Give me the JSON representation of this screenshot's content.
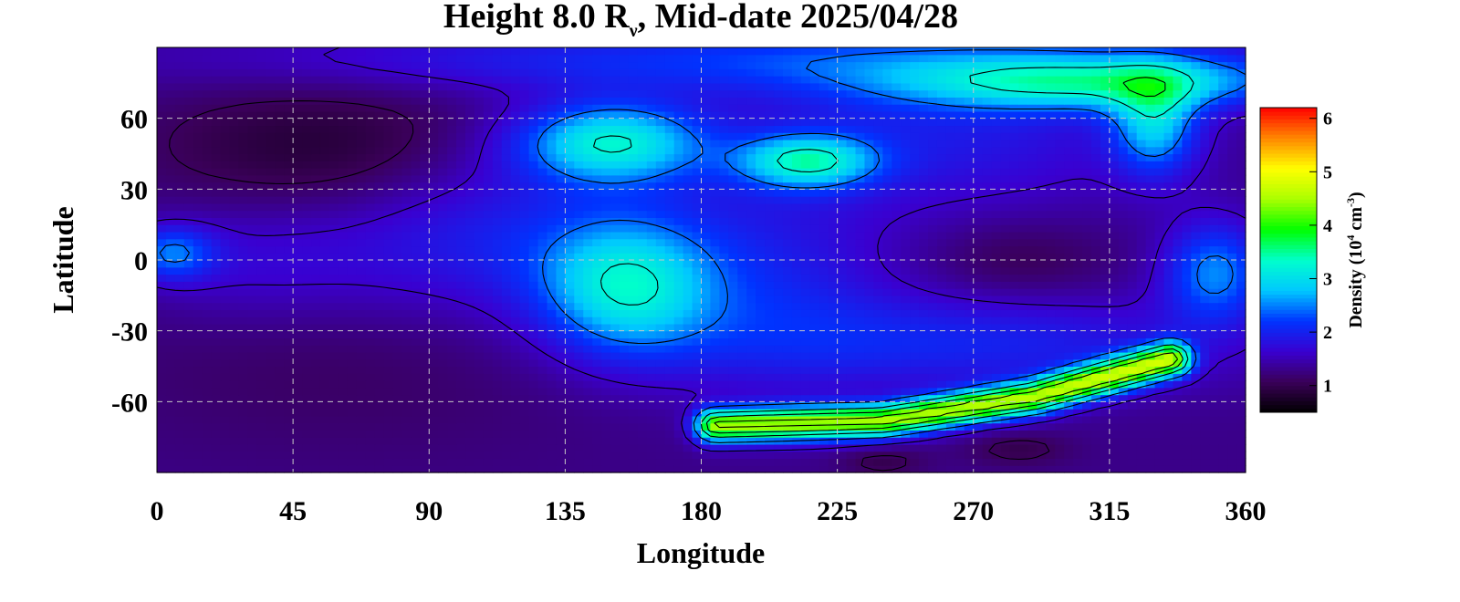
{
  "chart_data": {
    "type": "heatmap",
    "title_main": "Height 8.0 R",
    "title_sub": "ν",
    "title_rest": ", Mid-date 2025/04/28",
    "xlabel": "Longitude",
    "ylabel": "Latitude",
    "xlim": [
      0,
      360
    ],
    "ylim": [
      -90,
      90
    ],
    "x_ticks": [
      0,
      45,
      90,
      135,
      180,
      225,
      270,
      315,
      360
    ],
    "x_tick_labels": [
      "0",
      "45",
      "90",
      "135",
      "180",
      "225",
      "270",
      "315",
      "360"
    ],
    "y_ticks": [
      60,
      30,
      0,
      -30,
      -60
    ],
    "y_tick_labels": [
      "60",
      "30",
      "0",
      "-30",
      "-60"
    ],
    "grid": true,
    "colorbar": {
      "label_main": "Density (10",
      "label_sup1": "4",
      "label_mid": " cm",
      "label_sup2": "-3",
      "label_end": ")",
      "range": [
        0.5,
        6.2
      ],
      "ticks": [
        1,
        2,
        3,
        4,
        5,
        6
      ],
      "tick_labels": [
        "1",
        "2",
        "3",
        "4",
        "5",
        "6"
      ],
      "colors": [
        "#000000",
        "#3a0058",
        "#3a00d0",
        "#0033ff",
        "#00c8ff",
        "#00ffcc",
        "#00ff00",
        "#aaff00",
        "#ffff00",
        "#ff8800",
        "#ff0000"
      ]
    },
    "background_level": 1.3,
    "features": [
      {
        "lon": 55,
        "lat": 45,
        "sx": 40,
        "sy": 22,
        "amp": -0.5
      },
      {
        "lon": 60,
        "lat": -40,
        "sx": 60,
        "sy": 30,
        "amp": -0.2
      },
      {
        "lon": 285,
        "lat": 0,
        "sx": 22,
        "sy": 12,
        "amp": -0.3
      },
      {
        "lon": 240,
        "lat": -85,
        "sx": 10,
        "sy": 5,
        "amp": -0.3
      },
      {
        "lon": 285,
        "lat": -80,
        "sx": 12,
        "sy": 5,
        "amp": -0.3
      },
      {
        "lon": 150,
        "lat": 50,
        "sx": 22,
        "sy": 12,
        "amp": 1.8
      },
      {
        "lon": 155,
        "lat": -12,
        "sx": 20,
        "sy": 20,
        "amp": 1.6
      },
      {
        "lon": 215,
        "lat": 42,
        "sx": 16,
        "sy": 8,
        "amp": 1.7
      },
      {
        "lon": 310,
        "lat": 75,
        "sx": 45,
        "sy": 8,
        "amp": 1.6
      },
      {
        "lon": 330,
        "lat": 58,
        "sx": 10,
        "sy": 15,
        "amp": 1.4
      },
      {
        "lon": 350,
        "lat": -5,
        "sx": 12,
        "sy": 15,
        "amp": 1.2
      },
      {
        "lon": 5,
        "lat": 3,
        "sx": 10,
        "sy": 8,
        "amp": 1.0
      },
      {
        "lon": 200,
        "lat": 85,
        "sx": 120,
        "sy": 10,
        "amp": 0.8
      },
      {
        "lon": 110,
        "lat": 10,
        "sx": 40,
        "sy": 25,
        "amp": 0.7
      },
      {
        "lon": 260,
        "lat": 55,
        "sx": 50,
        "sy": 25,
        "amp": 0.6
      },
      {
        "lon": 200,
        "lat": -10,
        "sx": 30,
        "sy": 30,
        "amp": 0.6
      },
      {
        "lon": 270,
        "lat": -35,
        "sx": 60,
        "sy": 15,
        "amp": 0.7
      },
      {
        "lon": 30,
        "lat": 0,
        "sx": 30,
        "sy": 20,
        "amp": 0.4
      }
    ],
    "ridge": {
      "points": [
        [
          185,
          -70
        ],
        [
          240,
          -68
        ],
        [
          290,
          -58
        ],
        [
          335,
          -42
        ]
      ],
      "width_deg": 5,
      "amp": 3.1
    },
    "contour_levels": [
      1.1,
      1.6,
      2.4,
      3.2,
      3.8,
      4.3,
      4.8
    ]
  }
}
